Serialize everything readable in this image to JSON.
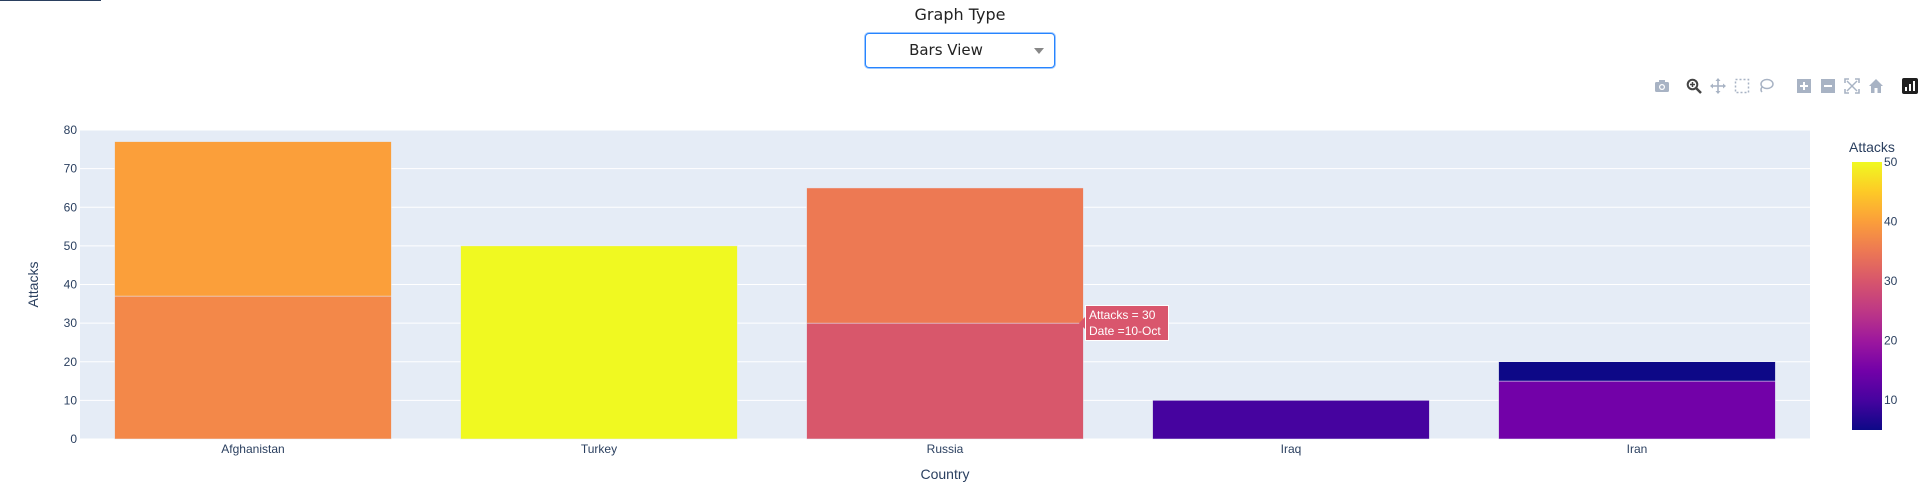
{
  "control": {
    "label": "Graph Type",
    "selected": "Bars View"
  },
  "modebar": {
    "icons": [
      "camera-icon",
      "zoom-icon",
      "pan-icon",
      "box-select-icon",
      "lasso-select-icon",
      "zoom-in-icon",
      "zoom-out-icon",
      "autoscale-icon",
      "reset-axes-icon",
      "plotly-logo-icon"
    ],
    "active": "zoom-icon"
  },
  "hover": {
    "line1": "Attacks = 30",
    "line2": "Date =10-Oct",
    "color": "#d9566d"
  },
  "colors": {
    "plot_bg": "#e5ecf6",
    "grid": "#ffffff",
    "text": "#2a3f5f",
    "colorscale": [
      "#0d0887",
      "#46039f",
      "#7201a8",
      "#9c179e",
      "#bd3786",
      "#d8576b",
      "#ed7953",
      "#fb9f3a",
      "#fdca26",
      "#f0f921"
    ]
  },
  "chart_data": {
    "type": "bar",
    "barmode": "stack",
    "categories": [
      "Afghanistan",
      "Turkey",
      "Russia",
      "Iraq",
      "Iran"
    ],
    "segments": [
      {
        "category": "Afghanistan",
        "value": 37,
        "color_value": 37
      },
      {
        "category": "Afghanistan",
        "value": 40,
        "color_value": 40
      },
      {
        "category": "Turkey",
        "value": 50,
        "color_value": 50
      },
      {
        "category": "Russia",
        "value": 30,
        "color_value": 30
      },
      {
        "category": "Russia",
        "value": 35,
        "color_value": 35
      },
      {
        "category": "Iraq",
        "value": 10,
        "color_value": 10
      },
      {
        "category": "Iran",
        "value": 15,
        "color_value": 15
      },
      {
        "category": "Iran",
        "value": 5,
        "color_value": 5
      }
    ],
    "xlabel": "Country",
    "ylabel": "Attacks",
    "ylim": [
      0,
      80
    ],
    "yticks": [
      0,
      10,
      20,
      30,
      40,
      50,
      60,
      70,
      80
    ],
    "colorbar": {
      "title": "Attacks",
      "range": [
        5,
        50
      ],
      "ticks": [
        10,
        20,
        30,
        40,
        50
      ]
    },
    "grid": true
  }
}
